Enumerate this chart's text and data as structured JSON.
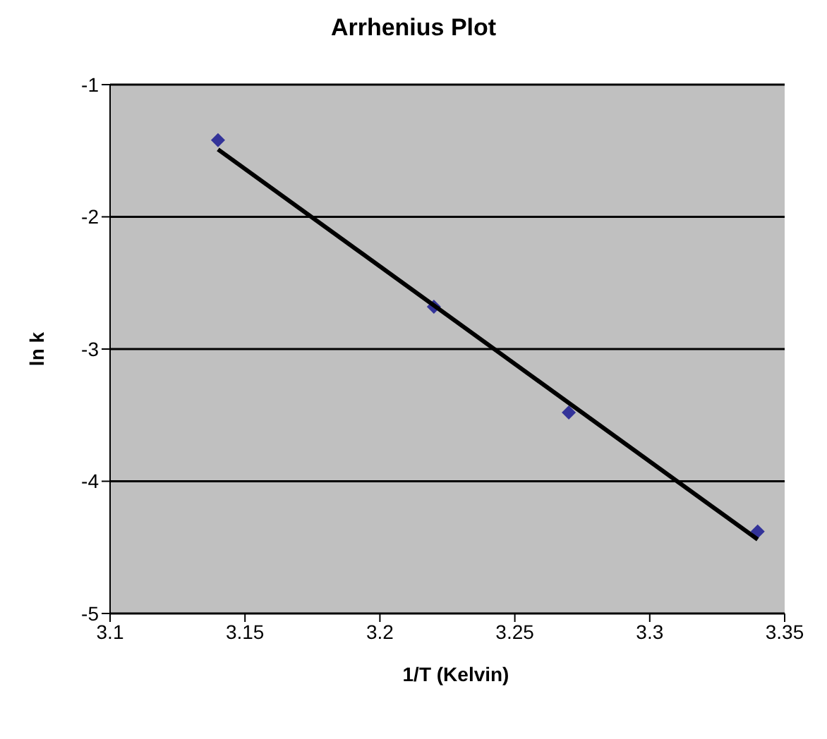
{
  "chart_data": {
    "type": "scatter",
    "title": "Arrhenius Plot",
    "xlabel": "1/T (Kelvin)",
    "ylabel": "ln k",
    "xlim": [
      3.1,
      3.35
    ],
    "xticks": [
      3.1,
      3.15,
      3.2,
      3.25,
      3.3,
      3.35
    ],
    "ylim": [
      -5,
      -1
    ],
    "yticks": [
      -5,
      -4,
      -3,
      -2,
      -1
    ],
    "grid": "y",
    "legend": false,
    "marker": "diamond",
    "series": [
      {
        "type": "scatter",
        "color": "#333399",
        "x": [
          3.14,
          3.22,
          3.27,
          3.34
        ],
        "values": [
          -1.42,
          -2.68,
          -3.48,
          -4.38
        ]
      },
      {
        "type": "line",
        "color": "#000000",
        "x": [
          3.14,
          3.34
        ],
        "values": [
          -1.49,
          -4.44
        ],
        "marker": "none",
        "line_style": "solid"
      }
    ]
  }
}
